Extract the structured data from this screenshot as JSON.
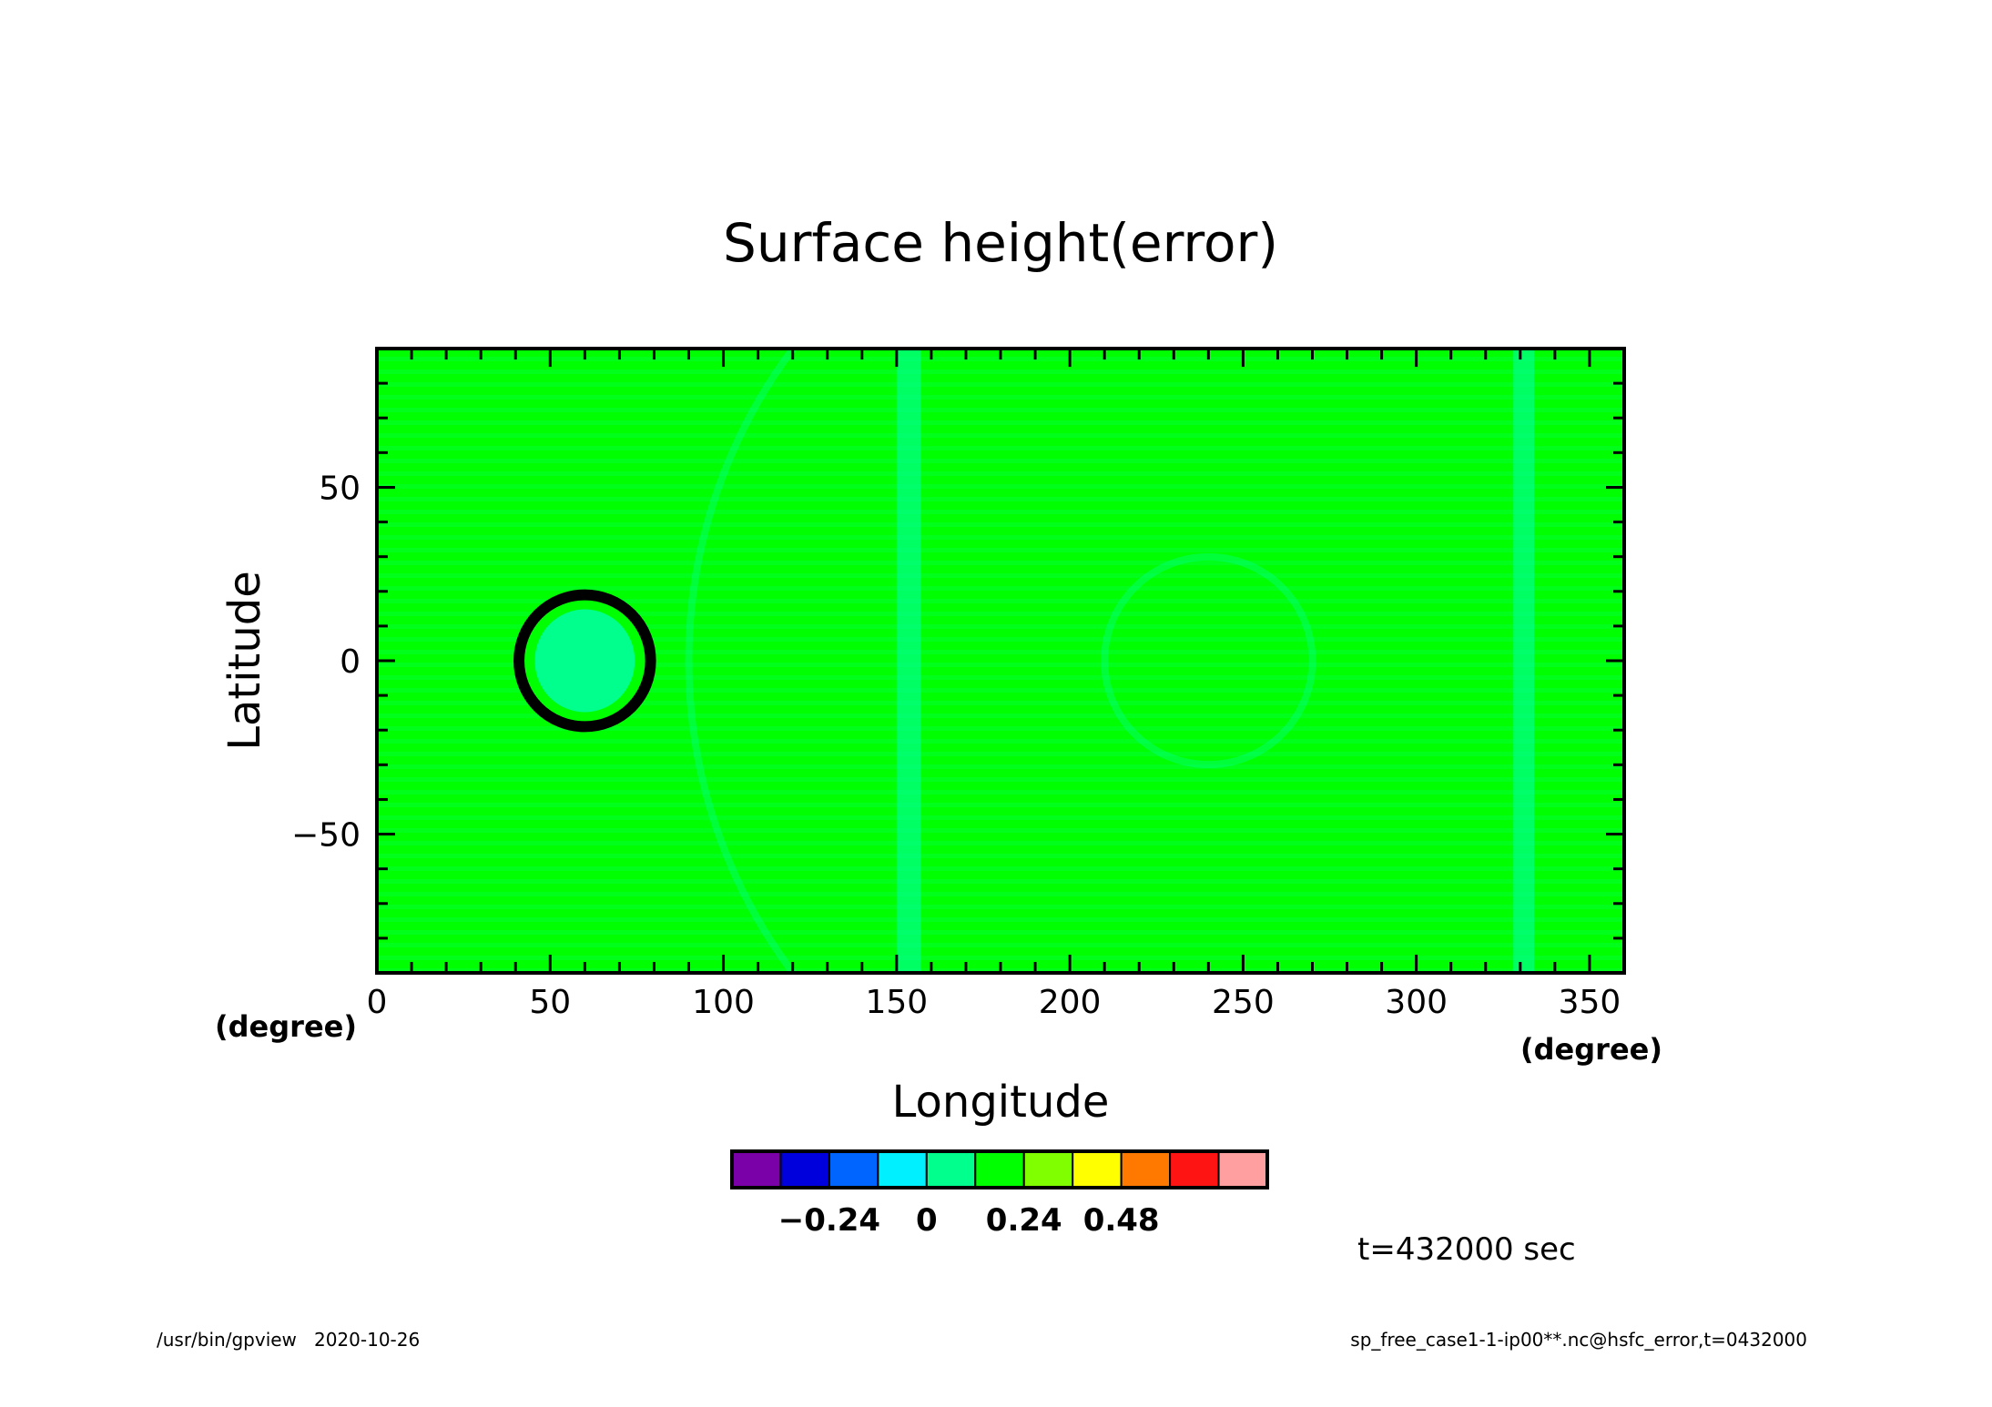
{
  "chart_data": {
    "type": "heatmap",
    "title": "Surface height(error)",
    "xlabel": "Longitude",
    "ylabel": "Latitude",
    "x_units": "(degree)",
    "y_units": "(degree)",
    "xlim": [
      0,
      360
    ],
    "ylim": [
      -90,
      90
    ],
    "xticks": [
      0,
      50,
      100,
      150,
      200,
      250,
      300,
      350
    ],
    "yticks": [
      -50,
      0,
      50
    ],
    "xtick_labels": [
      "0",
      "50",
      "100",
      "150",
      "200",
      "250",
      "300",
      "350"
    ],
    "ytick_labels": [
      "−50",
      "0",
      "50"
    ],
    "colorbar": {
      "colors": [
        "#7a00a8",
        "#0000dc",
        "#0064ff",
        "#00f0ff",
        "#00ff8c",
        "#00ff00",
        "#80ff00",
        "#ffff00",
        "#ff7800",
        "#ff1414",
        "#ff9f9f"
      ],
      "tick_values": [
        -0.24,
        0,
        0.24,
        0.48
      ],
      "tick_labels": [
        "−0.24",
        "0",
        "0.24",
        "0.48"
      ]
    },
    "field": {
      "background_color": "#00ff00",
      "alternating_color": "#00ff8c",
      "feature": {
        "type": "circular bump",
        "center_lon": 60,
        "center_lat": 0,
        "radius_deg": 19,
        "inner_color": "#00ff8c",
        "ring_color": "#000000"
      }
    },
    "time_label": "t=432000 sec"
  },
  "footer": {
    "left": "/usr/bin/gpview   2020-10-26",
    "right": "sp_free_case1-1-ip00**.nc@hsfc_error,t=0432000"
  }
}
